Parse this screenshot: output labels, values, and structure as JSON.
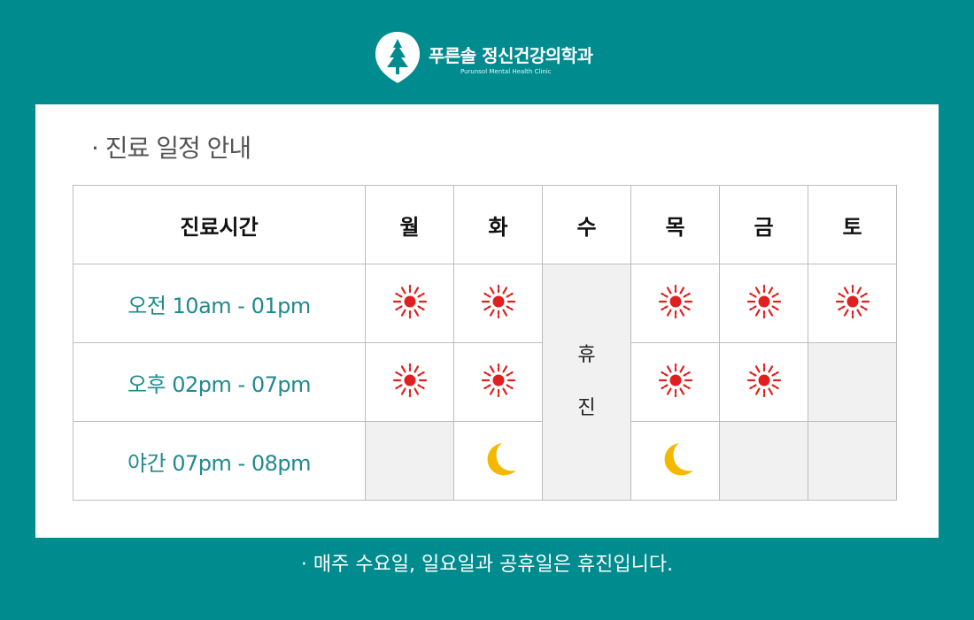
{
  "brand": {
    "name": "푸른솔 정신건강의학과",
    "subtitle": "Purunsol Mental Health Clinic",
    "logo_icon": "pine-tree-icon"
  },
  "section_title": "· 진료 일정 안내",
  "schedule": {
    "header": {
      "time_col": "진료시간",
      "days": [
        "월",
        "화",
        "수",
        "목",
        "금",
        "토"
      ]
    },
    "rows": [
      {
        "label": "오전 10am - 01pm",
        "cells": [
          "sun",
          "sun",
          "closed",
          "sun",
          "sun",
          "sun"
        ]
      },
      {
        "label": "오후 02pm - 07pm",
        "cells": [
          "sun",
          "sun",
          "closed",
          "sun",
          "sun",
          "empty"
        ]
      },
      {
        "label": "야간 07pm - 08pm",
        "cells": [
          "empty",
          "moon",
          "closed",
          "moon",
          "empty",
          "empty"
        ]
      }
    ],
    "closed_label": "휴진",
    "icons": {
      "sun": "sun-icon",
      "moon": "moon-icon"
    }
  },
  "footer_note": "· 매주 수요일, 일요일과 공휴일은 휴진입니다.",
  "colors": {
    "background": "#008b8f",
    "card": "#ffffff",
    "time_text": "#1f8a8e",
    "sun": "#e02020",
    "moon": "#f5b800",
    "closed_cell": "#f1f1f1"
  }
}
